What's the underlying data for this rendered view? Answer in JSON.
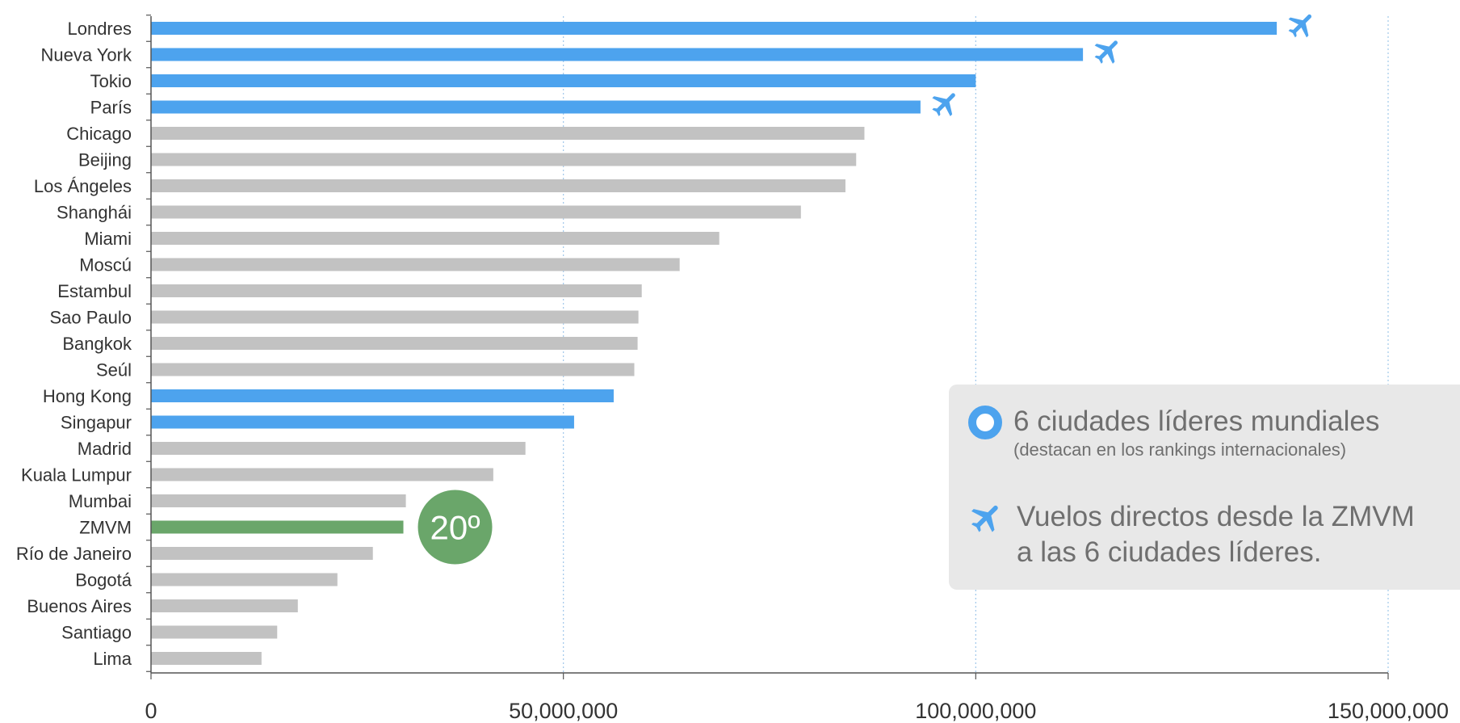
{
  "chart_data": {
    "type": "bar",
    "orientation": "horizontal",
    "categories": [
      "Londres",
      "Nueva York",
      "Tokio",
      "París",
      "Chicago",
      "Beijing",
      "Los Ángeles",
      "Shanghái",
      "Miami",
      "Moscú",
      "Estambul",
      "Sao Paulo",
      "Bangkok",
      "Seúl",
      "Hong Kong",
      "Singapur",
      "Madrid",
      "Kuala Lumpur",
      "Mumbai",
      "ZMVM",
      "Río de Janeiro",
      "Bogotá",
      "Buenos Aires",
      "Santiago",
      "Lima"
    ],
    "values": [
      136500000,
      113000000,
      100000000,
      93300000,
      86500000,
      85500000,
      84200000,
      78800000,
      68900000,
      64100000,
      59500000,
      59100000,
      59000000,
      58600000,
      56100000,
      51300000,
      45400000,
      41500000,
      30900000,
      30600000,
      26900000,
      22600000,
      17800000,
      15300000,
      13400000
    ],
    "highlight": [
      "leader",
      "leader",
      "leader",
      "leader",
      "normal",
      "normal",
      "normal",
      "normal",
      "normal",
      "normal",
      "normal",
      "normal",
      "normal",
      "normal",
      "leader",
      "leader",
      "normal",
      "normal",
      "normal",
      "zmvm",
      "normal",
      "normal",
      "normal",
      "normal",
      "normal"
    ],
    "direct_flight": [
      true,
      true,
      false,
      true,
      false,
      false,
      false,
      false,
      false,
      false,
      false,
      false,
      false,
      false,
      false,
      false,
      false,
      false,
      false,
      false,
      false,
      false,
      false,
      false,
      false
    ],
    "x_ticks": [
      0,
      50000000,
      100000000,
      150000000
    ],
    "x_tick_labels": [
      "0",
      "50,000,000",
      "100,000,000",
      "150,000,000"
    ],
    "xlim": [
      0,
      150000000
    ],
    "grid": "vertical dotted",
    "colors": {
      "leader": "#4da3ee",
      "normal": "#c2c2c2",
      "zmvm": "#6aa66a",
      "grid": "#9fc7ea",
      "axis": "#555555",
      "plane": "#4da3ee"
    },
    "rank_badge": {
      "text": "20º",
      "category": "ZMVM"
    }
  },
  "legend": {
    "item1_title": "6 ciudades líderes mundiales",
    "item1_subtitle": "(destacan en los rankings internacionales)",
    "item2_line1": "Vuelos directos desde la ZMVM",
    "item2_line2": "a las 6 ciudades líderes.",
    "icons": [
      "ring-icon",
      "airplane-icon"
    ]
  }
}
